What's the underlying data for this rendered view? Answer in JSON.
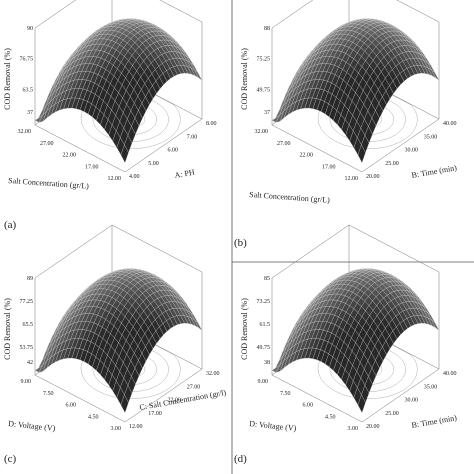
{
  "panels": [
    {
      "letter": "(a)",
      "z_label": "COD Removal (%)",
      "z_ticks": [
        "90",
        "76.75",
        "63.5",
        "37"
      ],
      "left_label": "Salt Concentration (gr/L)",
      "left_ticks": [
        "32.00",
        "27.00",
        "22.00",
        "17.00",
        "12.00"
      ],
      "right_label": "A: PH",
      "right_ticks": [
        "4.00",
        "5.00",
        "6.00",
        "7.00",
        "8.00"
      ]
    },
    {
      "letter": "(b)",
      "z_label": "COD Removal (%)",
      "z_ticks": [
        "88",
        "75.25",
        "49.75",
        "37"
      ],
      "left_label": "Salt Concentration (gr/L)",
      "left_ticks": [
        "32.00",
        "27.00",
        "22.00",
        "17.00",
        "12.00"
      ],
      "right_label": "B: Time (min)",
      "right_ticks": [
        "20.00",
        "25.00",
        "30.00",
        "35.00",
        "40.00"
      ]
    },
    {
      "letter": "(c)",
      "z_label": "COD Removal (%)",
      "z_ticks": [
        "89",
        "77.25",
        "65.5",
        "53.75",
        "42"
      ],
      "left_label": "D: Voltage (V)",
      "left_ticks": [
        "9.00",
        "7.50",
        "6.00",
        "4.50",
        "3.00"
      ],
      "right_label": "C: Salt Concentration (gr/l)",
      "right_ticks": [
        "12.00",
        "17.00",
        "22.00",
        "27.00",
        "32.00"
      ]
    },
    {
      "letter": "(d)",
      "z_label": "COD Removal (%)",
      "z_ticks": [
        "85",
        "73.25",
        "61.5",
        "49.75",
        "38"
      ],
      "left_label": "D: Voltage (V)",
      "left_ticks": [
        "9.00",
        "7.50",
        "6.00",
        "4.50",
        "3.00"
      ],
      "right_label": "B: Time (min)",
      "right_ticks": [
        "20.00",
        "25.00",
        "30.00",
        "35.00",
        "40.00"
      ]
    }
  ]
}
